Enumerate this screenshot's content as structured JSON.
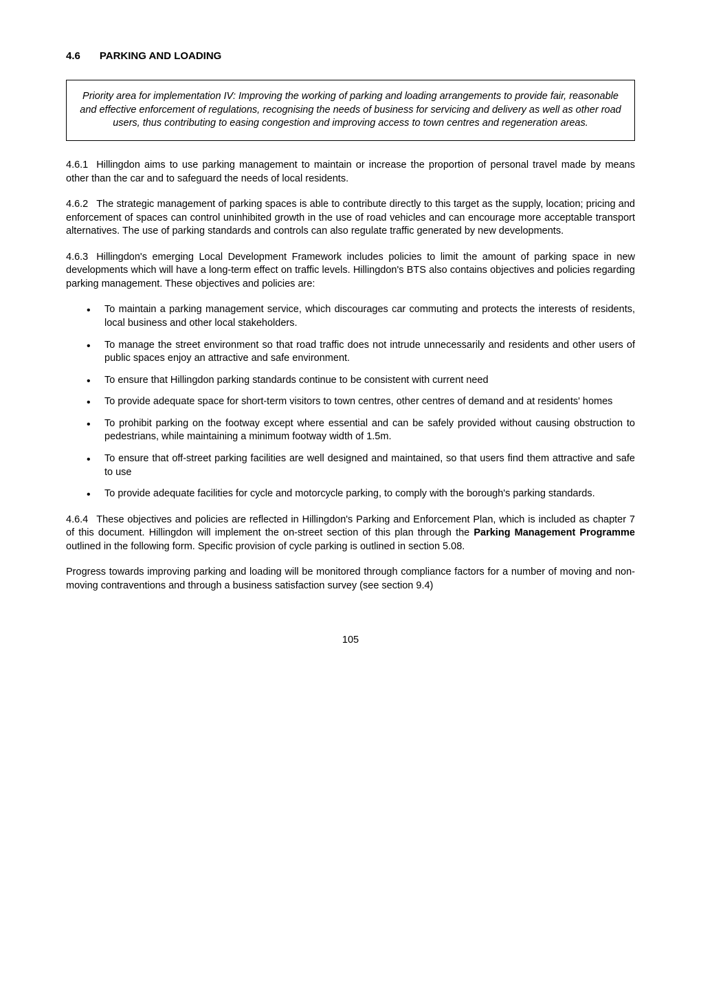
{
  "heading": {
    "number": "4.6",
    "title": "PARKING AND LOADING"
  },
  "priority_box": "Priority area for implementation  IV:  Improving the working of parking and loading arrangements to provide fair, reasonable and effective enforcement of regulations, recognising the needs of business for servicing and delivery as well as other road users, thus contributing to easing congestion and improving access to town centres and regeneration areas.",
  "paragraphs": {
    "p1_num": "4.6.1",
    "p1_text": "Hillingdon aims to use parking management to maintain or increase the proportion of personal travel made by means other than the car and to safeguard the needs of local residents.",
    "p2_num": "4.6.2",
    "p2_text": "The strategic management of parking spaces is able to contribute directly to this target as the supply, location; pricing and enforcement of spaces can control uninhibited growth in the use of road vehicles and can encourage more acceptable transport alternatives.  The use of parking standards and controls can also regulate traffic generated by new developments.",
    "p3_num": "4.6.3",
    "p3_text": "Hillingdon's emerging Local Development Framework  includes policies to limit the amount of parking space in new developments which will have a long-term effect on traffic levels. Hillingdon's BTS also contains objectives and policies regarding parking management.  These objectives and policies are:",
    "p4_num": "4.6.4",
    "p4_text_a": "These objectives and policies are reflected in Hillingdon's Parking and Enforcement Plan, which is included as chapter 7 of this document.  Hillingdon will implement the on-street section of this plan through the ",
    "p4_bold": "Parking Management Programme",
    "p4_text_b": " outlined in the following form. Specific provision of cycle parking is outlined in section 5.08.",
    "p5_text": "Progress towards improving parking and loading will be monitored through compliance factors for a number of moving and non-moving contraventions and through a business satisfaction survey (see section 9.4)"
  },
  "bullets": [
    "To maintain a parking management service, which discourages car commuting and protects the interests of residents, local business and other local stakeholders.",
    "To manage the street environment so that road traffic does not intrude unnecessarily and residents and other users of public spaces enjoy an attractive and safe environment.",
    "To ensure that Hillingdon parking standards continue to be consistent with current need",
    "To provide adequate space for short-term visitors to town centres, other centres of demand and at residents' homes",
    "To prohibit parking on the footway except where essential and can be safely provided without causing obstruction to pedestrians, while maintaining a minimum footway width of 1.5m.",
    "To ensure that off-street parking facilities are well designed and maintained, so that users find them attractive and safe to use",
    "To provide adequate facilities for cycle and motorcycle parking, to comply with the borough's parking standards."
  ],
  "page_number": "105"
}
